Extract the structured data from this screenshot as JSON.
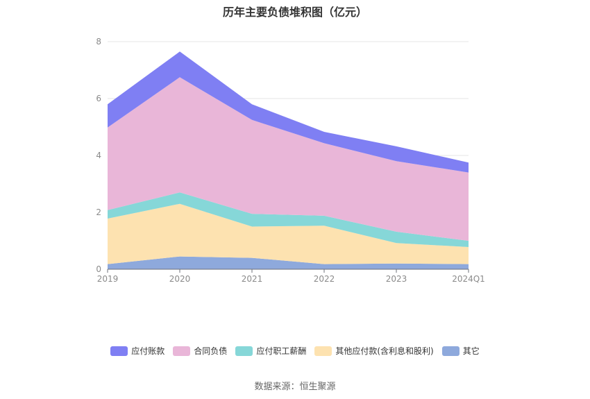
{
  "title": "历年主要负债堆积图（亿元）",
  "source": "数据来源：恒生聚源",
  "chart_data": {
    "type": "area",
    "stacked": true,
    "categories": [
      "2019",
      "2020",
      "2021",
      "2022",
      "2023",
      "2024Q1"
    ],
    "ylim": [
      0,
      8
    ],
    "yticks": [
      0,
      2,
      4,
      6,
      8
    ],
    "grid": true,
    "legend_position": "bottom",
    "series": [
      {
        "name": "其它",
        "color": "#8ea9dc",
        "values": [
          0.18,
          0.45,
          0.4,
          0.18,
          0.2,
          0.18
        ]
      },
      {
        "name": "其他应付款(含利息和股利)",
        "color": "#fde2b0",
        "values": [
          1.6,
          1.85,
          1.1,
          1.35,
          0.72,
          0.6
        ]
      },
      {
        "name": "应付职工薪酬",
        "color": "#86d7d8",
        "values": [
          0.3,
          0.4,
          0.45,
          0.35,
          0.4,
          0.22
        ]
      },
      {
        "name": "合同负债",
        "color": "#e9b6d8",
        "values": [
          2.9,
          4.05,
          3.3,
          2.55,
          2.48,
          2.4
        ]
      },
      {
        "name": "应付账款",
        "color": "#7f7ff3",
        "values": [
          0.82,
          0.9,
          0.55,
          0.4,
          0.52,
          0.35
        ]
      }
    ],
    "legend_order": [
      "应付账款",
      "合同负债",
      "应付职工薪酬",
      "其他应付款(含利息和股利)",
      "其它"
    ]
  }
}
